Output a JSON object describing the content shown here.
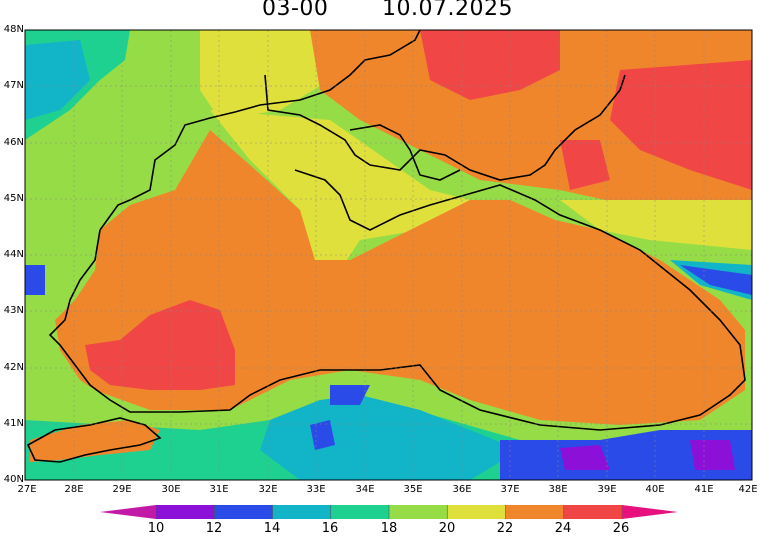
{
  "title": {
    "time": "03-00",
    "date": "10.07.2025"
  },
  "axes": {
    "lat_labels": [
      "48N",
      "47N",
      "46N",
      "45N",
      "44N",
      "43N",
      "42N",
      "41N",
      "40N"
    ],
    "lon_labels": [
      "27E",
      "28E",
      "29E",
      "30E",
      "31E",
      "32E",
      "33E",
      "34E",
      "35E",
      "36E",
      "37E",
      "38E",
      "39E",
      "40E",
      "41E",
      "42E"
    ]
  },
  "colorbar": {
    "labels": [
      "10",
      "12",
      "14",
      "16",
      "18",
      "20",
      "22",
      "24",
      "26"
    ],
    "colors": [
      "#8c10d8",
      "#2a4be8",
      "#12b4c8",
      "#1ed190",
      "#96dc46",
      "#e0e03c",
      "#f0862c",
      "#f04646",
      "#e8107c"
    ]
  }
}
